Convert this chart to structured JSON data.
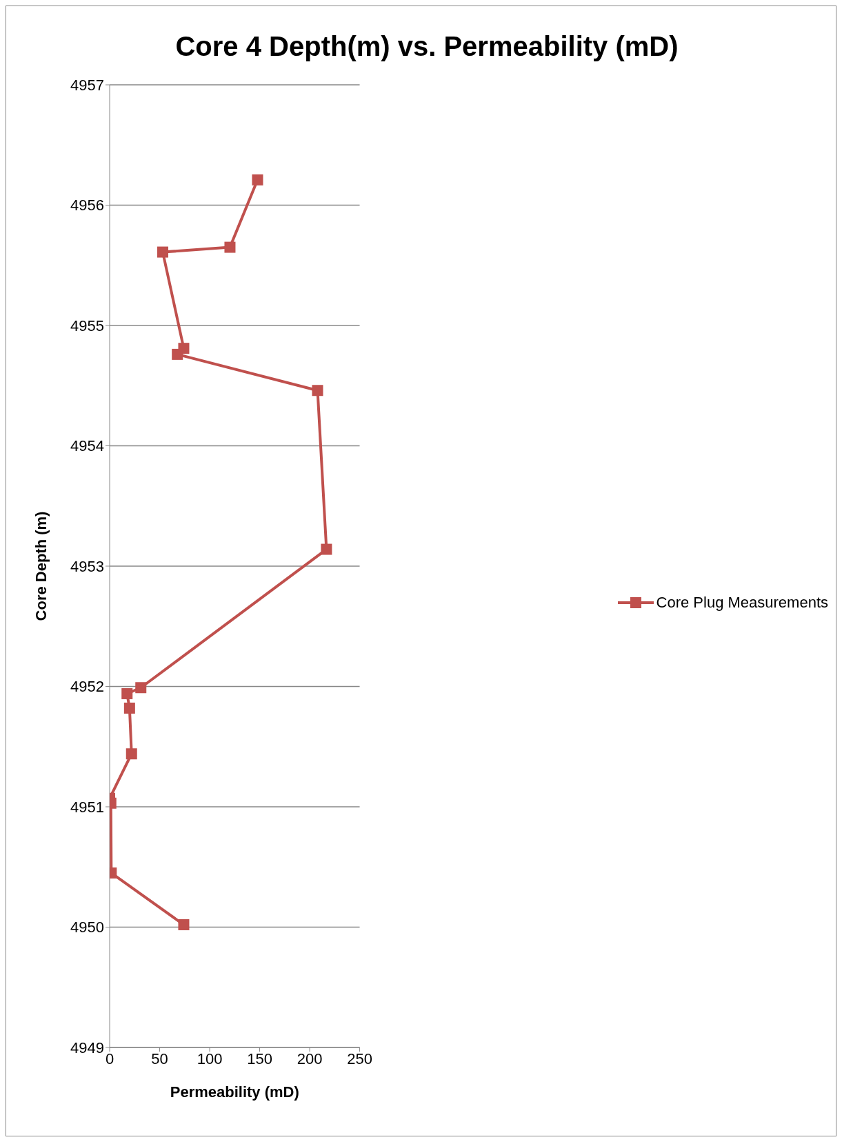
{
  "chart_data": {
    "type": "line",
    "title": "Core 4 Depth(m) vs. Permeability (mD)",
    "xlabel": "Permeability (mD)",
    "ylabel": "Core Depth (m)",
    "xlim": [
      0,
      250
    ],
    "xticks": [
      0,
      50,
      100,
      150,
      200,
      250
    ],
    "ylim": [
      4949,
      4957
    ],
    "yticks": [
      4949,
      4950,
      4951,
      4952,
      4953,
      4954,
      4955,
      4956,
      4957
    ],
    "grid": "y",
    "legend": "right",
    "marker": "square",
    "line_style": "solid",
    "series": [
      {
        "name": "Core Plug Measurements",
        "color": "#c0504d",
        "x": [
          147.9,
          120.3,
          53.1,
          74.1,
          67.7,
          207.9,
          216.8,
          31.2,
          17.4,
          19.9,
          21.9,
          0,
          1.2,
          1.6,
          74.1
        ],
        "values": [
          4956.21,
          4955.65,
          4955.61,
          4954.81,
          4954.76,
          4954.46,
          4953.14,
          4951.99,
          4951.94,
          4951.82,
          4951.44,
          4951.07,
          4951.03,
          4950.45,
          4950.02
        ]
      }
    ]
  }
}
